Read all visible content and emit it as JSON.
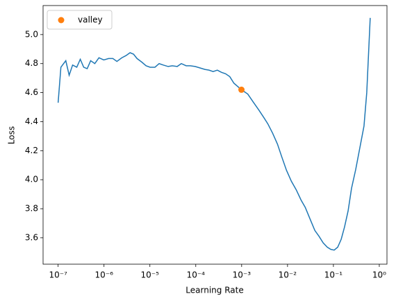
{
  "chart_data": {
    "type": "line",
    "x_label": "Learning Rate",
    "y_label": "Loss",
    "xscale": "log",
    "xlim": [
      4.7e-08,
      1.47
    ],
    "ylim": [
      3.418,
      5.2
    ],
    "xticks": [
      {
        "value": 1e-07,
        "label": "10⁻⁷"
      },
      {
        "value": 1e-06,
        "label": "10⁻⁶"
      },
      {
        "value": 1e-05,
        "label": "10⁻⁵"
      },
      {
        "value": 0.0001,
        "label": "10⁻⁴"
      },
      {
        "value": 0.001,
        "label": "10⁻³"
      },
      {
        "value": 0.01,
        "label": "10⁻²"
      },
      {
        "value": 0.1,
        "label": "10⁻¹"
      },
      {
        "value": 1,
        "label": "10⁰"
      }
    ],
    "yticks": [
      3.6,
      3.8,
      {
        "value": 4,
        "label": "4.0"
      },
      4.2,
      4.4,
      4.6,
      4.8,
      {
        "value": 5,
        "label": "5.0"
      }
    ],
    "legend": "upper left",
    "series": [
      {
        "color": "#1f77b4",
        "style": "line",
        "x": [
          1e-07,
          1.15e-07,
          1.47e-07,
          1.74e-07,
          2.07e-07,
          2.55e-07,
          3.04e-07,
          3.61e-07,
          4.3e-07,
          5.12e-07,
          6.3e-07,
          7.76e-07,
          9.9e-07,
          1.26e-06,
          1.56e-06,
          1.91e-06,
          2.44e-06,
          3.01e-06,
          3.7e-06,
          4.41e-06,
          5.24e-06,
          6.68e-06,
          8.24e-06,
          1.01e-05,
          1.29e-05,
          1.59e-05,
          1.96e-05,
          2.5e-05,
          3.08e-05,
          3.93e-05,
          4.84e-05,
          6.17e-05,
          7.6e-05,
          9.69e-05,
          0.000124,
          0.000158,
          0.000194,
          0.000239,
          0.000295,
          0.000363,
          0.000447,
          0.000551,
          0.000678,
          0.00099,
          0.00136,
          0.00179,
          0.00237,
          0.00302,
          0.00372,
          0.00474,
          0.00604,
          0.00744,
          0.00949,
          0.0121,
          0.0155,
          0.0197,
          0.0243,
          0.0309,
          0.0394,
          0.0486,
          0.0598,
          0.0736,
          0.0877,
          0.104,
          0.124,
          0.148,
          0.175,
          0.209,
          0.248,
          0.306,
          0.377,
          0.464,
          0.533,
          0.634
        ],
        "values": [
          4.53,
          4.775,
          4.82,
          4.72,
          4.79,
          4.775,
          4.83,
          4.775,
          4.765,
          4.82,
          4.8,
          4.84,
          4.825,
          4.835,
          4.835,
          4.815,
          4.84,
          4.855,
          4.875,
          4.865,
          4.835,
          4.81,
          4.785,
          4.775,
          4.775,
          4.8,
          4.79,
          4.78,
          4.785,
          4.78,
          4.8,
          4.785,
          4.785,
          4.78,
          4.77,
          4.76,
          4.755,
          4.745,
          4.755,
          4.74,
          4.73,
          4.71,
          4.665,
          4.62,
          4.59,
          4.535,
          4.48,
          4.43,
          4.385,
          4.32,
          4.245,
          4.16,
          4.065,
          3.99,
          3.93,
          3.86,
          3.81,
          3.73,
          3.65,
          3.61,
          3.565,
          3.535,
          3.52,
          3.515,
          3.535,
          3.59,
          3.675,
          3.785,
          3.94,
          4.07,
          4.22,
          4.37,
          4.6,
          5.115
        ]
      },
      {
        "name": "valley",
        "color": "#ff7f0e",
        "style": "marker",
        "x": [
          0.00099
        ],
        "values": [
          4.62
        ]
      }
    ]
  }
}
